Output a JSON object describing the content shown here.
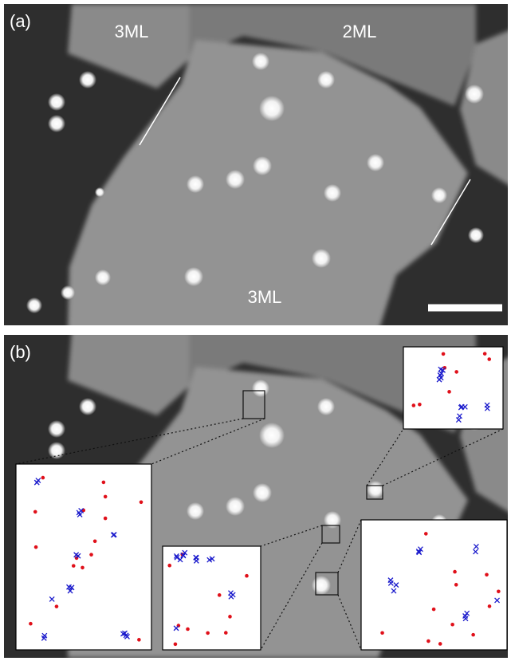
{
  "panel_a": {
    "label": "(a)",
    "annotations": [
      "3ML",
      "2ML",
      "3ML"
    ]
  },
  "panel_b": {
    "label": "(b)"
  }
}
